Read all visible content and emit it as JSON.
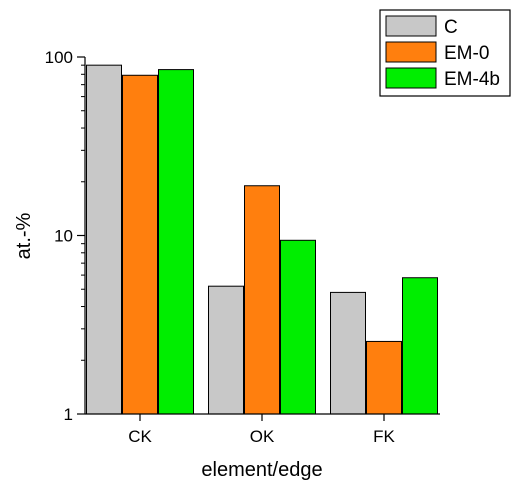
{
  "chart_data": {
    "type": "bar",
    "categories": [
      "CK",
      "OK",
      "FK"
    ],
    "series": [
      {
        "name": "C",
        "values": [
          90,
          5.2,
          4.8
        ],
        "color": "#c8c8c8"
      },
      {
        "name": "EM-0",
        "values": [
          79,
          19,
          2.55
        ],
        "color": "#ff7f0e"
      },
      {
        "name": "EM-4b",
        "values": [
          85,
          9.4,
          5.8
        ],
        "color": "#00ee00"
      }
    ],
    "xlabel": "element/edge",
    "ylabel": "at.-%",
    "yscale": "log",
    "ylim": [
      1,
      100
    ],
    "yticks": [
      1,
      10,
      100
    ],
    "ytick_labels": [
      "1",
      "10",
      "100"
    ],
    "grid": false,
    "legend_position": "top-right"
  }
}
